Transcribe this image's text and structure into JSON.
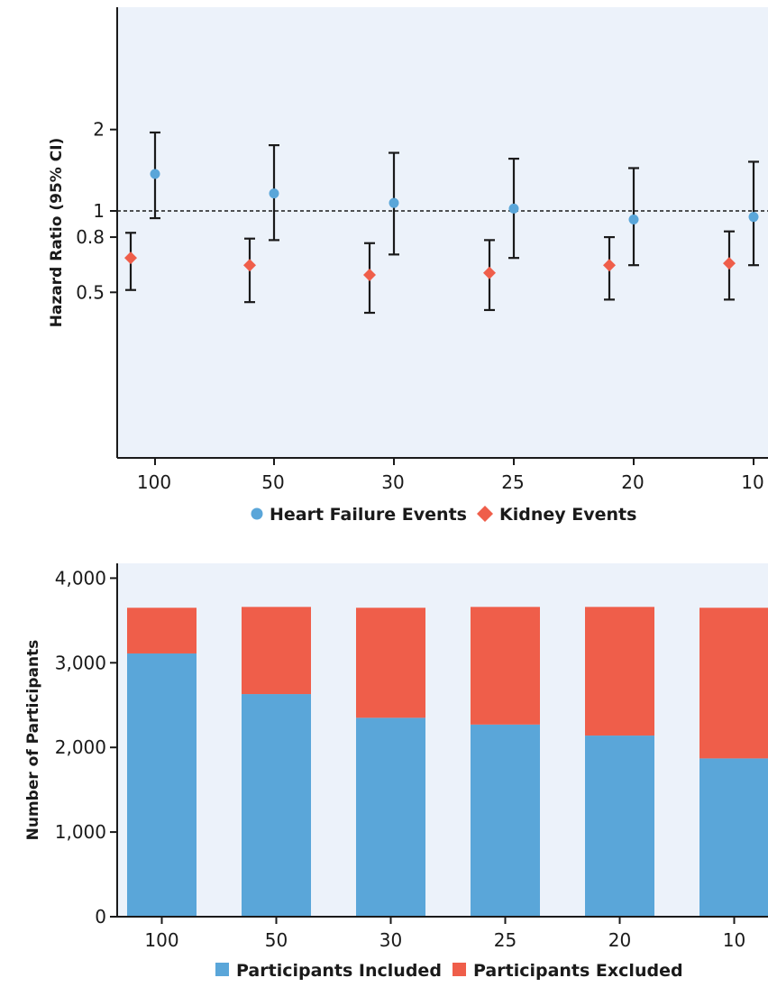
{
  "chart_data": [
    {
      "type": "scatter",
      "ylabel": "Hazard Ratio (95% CI)",
      "xlabel": "",
      "y_scale": "log",
      "ylim": [
        0.4,
        2.05
      ],
      "y_ticks": [
        0.5,
        0.8,
        1,
        2
      ],
      "y_tick_labels": [
        "0.5",
        "0.8",
        "1",
        "2"
      ],
      "reference_line": 1,
      "categories": [
        "100",
        "50",
        "30",
        "25",
        "20",
        "10"
      ],
      "series": [
        {
          "name": "Heart Failure Events",
          "color": "#5aa6d9",
          "marker": "circle",
          "values": [
            1.37,
            1.16,
            1.07,
            1.02,
            0.93,
            0.95
          ],
          "ci_low": [
            0.94,
            0.78,
            0.69,
            0.67,
            0.63,
            0.63
          ],
          "ci_high": [
            1.95,
            1.75,
            1.64,
            1.56,
            1.44,
            1.52
          ]
        },
        {
          "name": "Kidney Events",
          "color": "#ef5e4a",
          "marker": "diamond",
          "values": [
            0.67,
            0.63,
            0.58,
            0.59,
            0.63,
            0.64
          ],
          "ci_low": [
            0.51,
            0.46,
            0.42,
            0.43,
            0.47,
            0.47
          ],
          "ci_high": [
            0.83,
            0.79,
            0.76,
            0.78,
            0.8,
            0.84
          ]
        }
      ],
      "legend": "bottom",
      "grid": false
    },
    {
      "type": "bar",
      "stacked": true,
      "ylabel": "Number of Participants",
      "xlabel": "",
      "ylim": [
        0,
        4150
      ],
      "y_ticks": [
        0,
        1000,
        2000,
        3000,
        4000
      ],
      "y_tick_labels": [
        "0",
        "1,000",
        "2,000",
        "3,000",
        "4,000"
      ],
      "categories": [
        "100",
        "50",
        "30",
        "25",
        "20",
        "10"
      ],
      "series": [
        {
          "name": "Participants Included",
          "color": "#5aa6d9",
          "values": [
            3110,
            2630,
            2350,
            2270,
            2140,
            1870
          ]
        },
        {
          "name": "Participants Excluded",
          "color": "#ef5e4a",
          "values": [
            540,
            1030,
            1300,
            1390,
            1520,
            1780
          ]
        }
      ],
      "legend": "bottom",
      "grid": false
    }
  ],
  "style": {
    "plot_background": "#ecf2fa",
    "axis_color": "#1a1a1a",
    "errorbar_color": "#1a1a1a"
  }
}
